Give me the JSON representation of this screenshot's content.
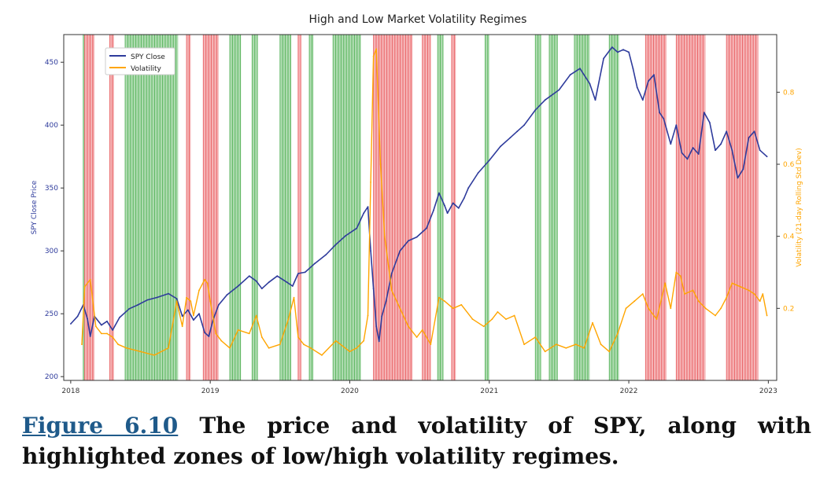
{
  "caption": {
    "ref": "Figure 6.10",
    "text": "The price and volatility of SPY, along with highlighted zones of low/high volatility regimes."
  },
  "colors": {
    "price": "#2e3b9c",
    "volatility": "#ffa500",
    "high_regime": "#e8575a",
    "low_regime": "#4caf50",
    "left_axis_text": "#2e3b9c",
    "right_axis_text": "#ffa500"
  },
  "chart_data": {
    "type": "line",
    "title": "High and Low Market Volatility Regimes",
    "ylabel": "SPY Close Price",
    "y2label": "Volatility (21-day Rolling Std Dev)",
    "xlim": [
      2018.0,
      2023.0
    ],
    "ylim": [
      197,
      472
    ],
    "y2lim": [
      0.0,
      0.96
    ],
    "x_ticks": [
      2018,
      2019,
      2020,
      2021,
      2022,
      2023
    ],
    "x_tick_labels": [
      "2018",
      "2019",
      "2020",
      "2021",
      "2022",
      "2023"
    ],
    "y_ticks": [
      200,
      250,
      300,
      350,
      400,
      450
    ],
    "y_tick_labels": [
      "200",
      "250",
      "300",
      "350",
      "400",
      "450"
    ],
    "y2_ticks": [
      0.2,
      0.4,
      0.6,
      0.8
    ],
    "y2_tick_labels": [
      "0.2",
      "0.4",
      "0.6",
      "0.8"
    ],
    "legend_position": "top-left",
    "series": [
      {
        "name": "SPY Close",
        "axis": "left",
        "x": [
          2018.0,
          2018.05,
          2018.09,
          2018.12,
          2018.14,
          2018.17,
          2018.22,
          2018.26,
          2018.3,
          2018.35,
          2018.42,
          2018.48,
          2018.55,
          2018.62,
          2018.7,
          2018.76,
          2018.8,
          2018.84,
          2018.88,
          2018.92,
          2018.96,
          2018.99,
          2019.02,
          2019.06,
          2019.12,
          2019.2,
          2019.28,
          2019.33,
          2019.37,
          2019.42,
          2019.48,
          2019.55,
          2019.59,
          2019.63,
          2019.68,
          2019.75,
          2019.83,
          2019.9,
          2019.97,
          2020.05,
          2020.1,
          2020.13,
          2020.15,
          2020.17,
          2020.19,
          2020.21,
          2020.23,
          2020.26,
          2020.3,
          2020.36,
          2020.42,
          2020.48,
          2020.55,
          2020.6,
          2020.64,
          2020.68,
          2020.7,
          2020.74,
          2020.78,
          2020.82,
          2020.85,
          2020.92,
          2021.0,
          2021.08,
          2021.15,
          2021.2,
          2021.25,
          2021.33,
          2021.4,
          2021.5,
          2021.58,
          2021.65,
          2021.72,
          2021.76,
          2021.82,
          2021.88,
          2021.92,
          2021.96,
          2022.0,
          2022.03,
          2022.06,
          2022.1,
          2022.14,
          2022.18,
          2022.22,
          2022.25,
          2022.3,
          2022.34,
          2022.38,
          2022.42,
          2022.46,
          2022.5,
          2022.54,
          2022.58,
          2022.62,
          2022.66,
          2022.7,
          2022.74,
          2022.78,
          2022.82,
          2022.86,
          2022.9,
          2022.94,
          2022.99
        ],
        "values": [
          242,
          248,
          257,
          246,
          232,
          248,
          241,
          244,
          237,
          247,
          254,
          257,
          261,
          263,
          266,
          262,
          248,
          253,
          245,
          250,
          235,
          232,
          245,
          257,
          265,
          272,
          280,
          276,
          270,
          275,
          280,
          275,
          272,
          282,
          283,
          290,
          297,
          305,
          312,
          318,
          330,
          335,
          300,
          270,
          240,
          228,
          248,
          260,
          282,
          300,
          308,
          311,
          318,
          332,
          346,
          336,
          330,
          338,
          334,
          342,
          350,
          362,
          372,
          383,
          390,
          395,
          400,
          412,
          420,
          428,
          440,
          445,
          433,
          420,
          453,
          462,
          458,
          460,
          458,
          445,
          430,
          420,
          435,
          440,
          410,
          405,
          385,
          400,
          378,
          373,
          382,
          377,
          410,
          402,
          380,
          385,
          395,
          380,
          358,
          365,
          390,
          395,
          380,
          375
        ]
      },
      {
        "name": "Volatility",
        "axis": "right",
        "x": [
          2018.08,
          2018.1,
          2018.14,
          2018.18,
          2018.22,
          2018.26,
          2018.3,
          2018.34,
          2018.4,
          2018.5,
          2018.6,
          2018.7,
          2018.76,
          2018.8,
          2018.83,
          2018.86,
          2018.88,
          2018.92,
          2018.96,
          2018.98,
          2019.0,
          2019.04,
          2019.08,
          2019.14,
          2019.2,
          2019.28,
          2019.33,
          2019.37,
          2019.42,
          2019.5,
          2019.56,
          2019.6,
          2019.63,
          2019.67,
          2019.72,
          2019.8,
          2019.9,
          2020.0,
          2020.05,
          2020.1,
          2020.13,
          2020.15,
          2020.17,
          2020.19,
          2020.22,
          2020.25,
          2020.3,
          2020.36,
          2020.42,
          2020.48,
          2020.52,
          2020.58,
          2020.64,
          2020.68,
          2020.74,
          2020.8,
          2020.88,
          2020.96,
          2021.02,
          2021.06,
          2021.12,
          2021.18,
          2021.25,
          2021.33,
          2021.4,
          2021.48,
          2021.55,
          2021.62,
          2021.68,
          2021.74,
          2021.8,
          2021.86,
          2021.92,
          2021.98,
          2022.04,
          2022.1,
          2022.14,
          2022.2,
          2022.26,
          2022.3,
          2022.34,
          2022.37,
          2022.4,
          2022.46,
          2022.5,
          2022.55,
          2022.62,
          2022.66,
          2022.7,
          2022.74,
          2022.8,
          2022.86,
          2022.9,
          2022.94,
          2022.96,
          2022.99
        ],
        "values": [
          0.1,
          0.26,
          0.28,
          0.15,
          0.13,
          0.13,
          0.12,
          0.1,
          0.09,
          0.08,
          0.07,
          0.09,
          0.22,
          0.15,
          0.23,
          0.22,
          0.18,
          0.25,
          0.28,
          0.27,
          0.22,
          0.13,
          0.11,
          0.09,
          0.14,
          0.13,
          0.18,
          0.12,
          0.09,
          0.1,
          0.17,
          0.23,
          0.12,
          0.1,
          0.09,
          0.07,
          0.11,
          0.08,
          0.09,
          0.11,
          0.18,
          0.55,
          0.9,
          0.92,
          0.6,
          0.4,
          0.25,
          0.2,
          0.15,
          0.12,
          0.14,
          0.1,
          0.23,
          0.22,
          0.2,
          0.21,
          0.17,
          0.15,
          0.17,
          0.19,
          0.17,
          0.18,
          0.1,
          0.12,
          0.08,
          0.1,
          0.09,
          0.1,
          0.09,
          0.16,
          0.1,
          0.08,
          0.13,
          0.2,
          0.22,
          0.24,
          0.2,
          0.17,
          0.27,
          0.2,
          0.3,
          0.29,
          0.24,
          0.25,
          0.22,
          0.2,
          0.18,
          0.2,
          0.23,
          0.27,
          0.26,
          0.25,
          0.24,
          0.22,
          0.24,
          0.18
        ]
      }
    ],
    "regimes": {
      "high": [
        [
          2018.1,
          2018.17
        ],
        [
          2018.28,
          2018.31
        ],
        [
          2018.83,
          2018.86
        ],
        [
          2018.95,
          2019.06
        ],
        [
          2019.63,
          2019.65
        ],
        [
          2020.17,
          2020.45
        ],
        [
          2020.52,
          2020.58
        ],
        [
          2020.73,
          2020.76
        ],
        [
          2022.12,
          2022.27
        ],
        [
          2022.34,
          2022.55
        ],
        [
          2022.7,
          2022.93
        ]
      ],
      "low": [
        [
          2018.09,
          2018.1
        ],
        [
          2018.39,
          2018.77
        ],
        [
          2019.14,
          2019.22
        ],
        [
          2019.3,
          2019.34
        ],
        [
          2019.5,
          2019.58
        ],
        [
          2019.71,
          2019.74
        ],
        [
          2019.88,
          2020.08
        ],
        [
          2020.63,
          2020.67
        ],
        [
          2020.97,
          2021.0
        ],
        [
          2021.33,
          2021.37
        ],
        [
          2021.43,
          2021.49
        ],
        [
          2021.61,
          2021.72
        ],
        [
          2021.86,
          2021.93
        ]
      ]
    }
  }
}
